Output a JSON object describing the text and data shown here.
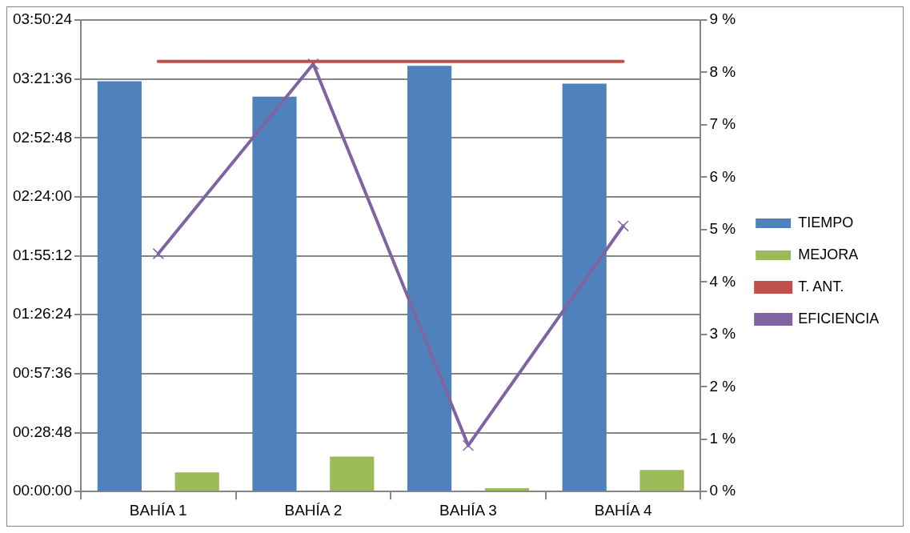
{
  "chart_data": {
    "type": "bar",
    "categories": [
      "BAHÍA 1",
      "BAHÍA 2",
      "BAHÍA 3",
      "BAHÍA 4"
    ],
    "series": [
      {
        "name": "TIEMPO",
        "color": "#4f81bd",
        "values": [
          3.342,
          3.216,
          3.467,
          3.322
        ]
      },
      {
        "name": "MEJORA",
        "color": "#9bbb59",
        "values": [
          0.156,
          0.284,
          0.028,
          0.175
        ]
      },
      {
        "name": "T. ANT.",
        "type": "line",
        "color": "#c0504d",
        "marker": "none",
        "values": [
          3.503,
          3.503,
          3.503,
          3.503
        ]
      },
      {
        "name": "EFICIENCIA",
        "type": "line",
        "axis": "y2",
        "color": "#8064a2",
        "marker": "cross",
        "values": [
          4.54,
          8.16,
          0.88,
          5.07
        ]
      }
    ],
    "ylim": [
      0,
      3.84
    ],
    "yticks": [
      {
        "value": 0,
        "label": "00:00:00"
      },
      {
        "value": 0.48,
        "label": "00:28:48"
      },
      {
        "value": 0.96,
        "label": "00:57:36"
      },
      {
        "value": 1.44,
        "label": "01:26:24"
      },
      {
        "value": 1.92,
        "label": "01:55:12"
      },
      {
        "value": 2.4,
        "label": "02:24:00"
      },
      {
        "value": 2.88,
        "label": "02:52:48"
      },
      {
        "value": 3.36,
        "label": "03:21:36"
      },
      {
        "value": 3.84,
        "label": "03:50:24"
      }
    ],
    "y2lim": [
      0,
      9
    ],
    "y2ticks": [
      {
        "value": 0,
        "label": "0 %"
      },
      {
        "value": 1,
        "label": "1 %"
      },
      {
        "value": 2,
        "label": "2 %"
      },
      {
        "value": 3,
        "label": "3 %"
      },
      {
        "value": 4,
        "label": "4 %"
      },
      {
        "value": 5,
        "label": "5 %"
      },
      {
        "value": 6,
        "label": "6 %"
      },
      {
        "value": 7,
        "label": "7 %"
      },
      {
        "value": 8,
        "label": "8 %"
      },
      {
        "value": 9,
        "label": "9 %"
      }
    ],
    "grid": "y",
    "legend": "right"
  }
}
